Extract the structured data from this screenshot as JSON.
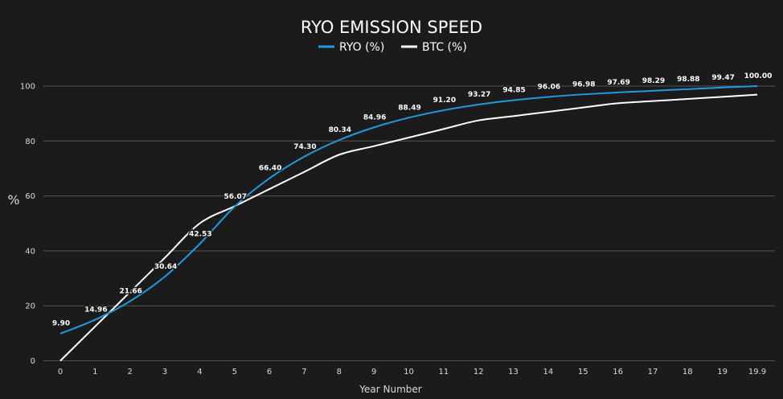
{
  "chart_data": {
    "type": "line",
    "title": "RYO EMISSION SPEED",
    "xlabel": "Year Number",
    "ylabel": "%",
    "x": [
      "0",
      "1",
      "2",
      "3",
      "4",
      "5",
      "6",
      "7",
      "8",
      "9",
      "10",
      "11",
      "12",
      "13",
      "14",
      "15",
      "16",
      "17",
      "18",
      "19",
      "19.9"
    ],
    "y_ticks": [
      "0",
      "20",
      "40",
      "60",
      "80",
      "100"
    ],
    "ylim": [
      0,
      105
    ],
    "grid": true,
    "legend": "top-center",
    "series": [
      {
        "name": "RYO (%)",
        "color": "#1e9be0",
        "values": [
          9.9,
          14.96,
          21.66,
          30.64,
          42.53,
          56.07,
          66.4,
          74.3,
          80.34,
          84.96,
          88.49,
          91.2,
          93.27,
          94.85,
          96.06,
          96.98,
          97.69,
          98.29,
          98.88,
          99.47,
          100.0
        ],
        "labels": [
          "9.90",
          "14.96",
          "21.66",
          "30.64",
          "42.53",
          "56.07",
          "66.40",
          "74.30",
          "80.34",
          "84.96",
          "88.49",
          "91.20",
          "93.27",
          "94.85",
          "96.06",
          "96.98",
          "97.69",
          "98.29",
          "98.88",
          "99.47",
          "100.00"
        ]
      },
      {
        "name": "BTC (%)",
        "color": "#ffffff",
        "values": [
          0,
          12.5,
          25,
          37.5,
          50,
          56.25,
          62.5,
          68.75,
          75,
          78.13,
          81.25,
          84.38,
          87.5,
          89.06,
          90.63,
          92.19,
          93.75,
          94.53,
          95.31,
          96.09,
          96.88
        ]
      }
    ]
  }
}
